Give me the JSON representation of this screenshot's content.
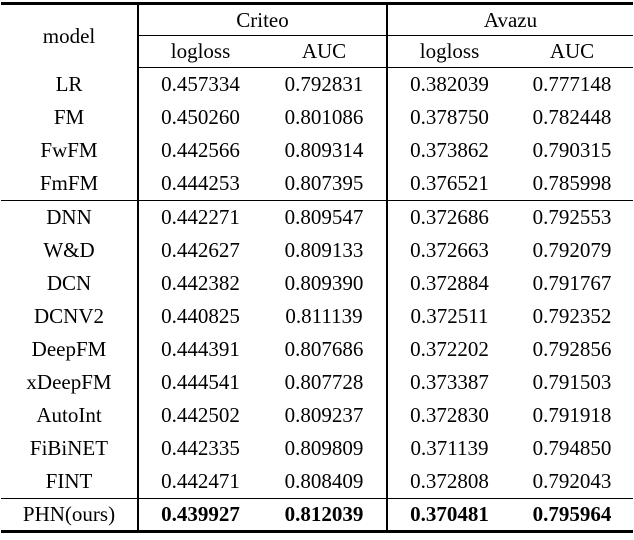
{
  "table": {
    "header": {
      "model": "model",
      "datasets": {
        "criteo": "Criteo",
        "avazu": "Avazu"
      },
      "metrics": {
        "criteo_logloss": "logloss",
        "criteo_auc": "AUC",
        "avazu_logloss": "logloss",
        "avazu_auc": "AUC"
      }
    },
    "rows": [
      [
        "LR",
        "0.457334",
        "0.792831",
        "0.382039",
        "0.777148"
      ],
      [
        "FM",
        "0.450260",
        "0.801086",
        "0.378750",
        "0.782448"
      ],
      [
        "FwFM",
        "0.442566",
        "0.809314",
        "0.373862",
        "0.790315"
      ],
      [
        "FmFM",
        "0.444253",
        "0.807395",
        "0.376521",
        "0.785998"
      ],
      [
        "DNN",
        "0.442271",
        "0.809547",
        "0.372686",
        "0.792553"
      ],
      [
        "W&D",
        "0.442627",
        "0.809133",
        "0.372663",
        "0.792079"
      ],
      [
        "DCN",
        "0.442382",
        "0.809390",
        "0.372884",
        "0.791767"
      ],
      [
        "DCNV2",
        "0.440825",
        "0.811139",
        "0.372511",
        "0.792352"
      ],
      [
        "DeepFM",
        "0.444391",
        "0.807686",
        "0.372202",
        "0.792856"
      ],
      [
        "xDeepFM",
        "0.444541",
        "0.807728",
        "0.373387",
        "0.791503"
      ],
      [
        "AutoInt",
        "0.442502",
        "0.809237",
        "0.372830",
        "0.791918"
      ],
      [
        "FiBiNET",
        "0.442335",
        "0.809809",
        "0.371139",
        "0.794850"
      ],
      [
        "FINT",
        "0.442471",
        "0.808409",
        "0.372808",
        "0.792043"
      ],
      [
        "PHN(ours)",
        "0.439927",
        "0.812039",
        "0.370481",
        "0.795964"
      ]
    ]
  }
}
